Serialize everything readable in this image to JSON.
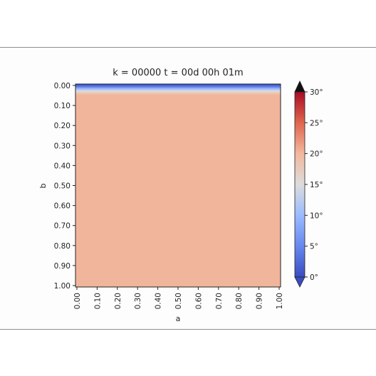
{
  "chart_data": {
    "type": "heatmap",
    "title": "k = 00000 t = 00d 00h 01m",
    "xlabel": "a",
    "ylabel": "b",
    "x_ticks": [
      "0.00",
      "0.10",
      "0.20",
      "0.30",
      "0.40",
      "0.50",
      "0.60",
      "0.70",
      "0.80",
      "0.90",
      "1.00"
    ],
    "y_ticks": [
      "0.00",
      "0.10",
      "0.20",
      "0.30",
      "0.40",
      "0.50",
      "0.60",
      "0.70",
      "0.80",
      "0.90",
      "1.00"
    ],
    "xlim": [
      0,
      1
    ],
    "ylim": [
      1,
      0
    ],
    "y_inverted": true,
    "colormap": "coolwarm",
    "colorbar": {
      "range": [
        0,
        30
      ],
      "ticks": [
        "0°",
        "5°",
        "10°",
        "15°",
        "20°",
        "25°",
        "30°"
      ],
      "extend": "both",
      "position": "right"
    },
    "field": {
      "description_values": "vertical profile along b; uniform along a",
      "b": [
        0.0,
        0.01,
        0.02,
        0.03,
        0.04,
        0.05,
        1.0
      ],
      "value": [
        3,
        8,
        14,
        17,
        19.5,
        20.5,
        20.5
      ]
    },
    "grid": false
  }
}
